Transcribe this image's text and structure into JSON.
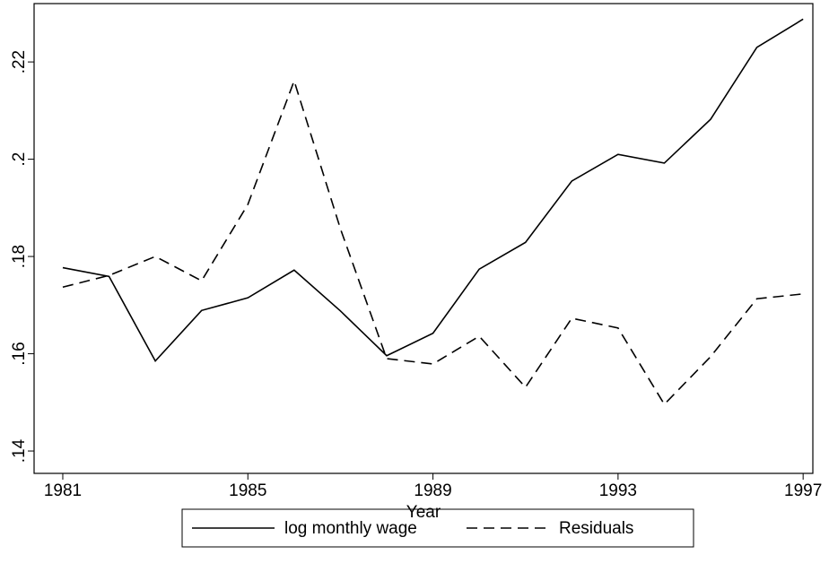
{
  "chart_data": {
    "type": "line",
    "x_label": "Year",
    "x": [
      1981,
      1982,
      1983,
      1984,
      1985,
      1986,
      1987,
      1988,
      1989,
      1990,
      1991,
      1992,
      1993,
      1994,
      1995,
      1996,
      1997
    ],
    "series": [
      {
        "name": "log monthly wage",
        "color": "#000000",
        "line_style": "solid",
        "values": [
          0.1777,
          0.1759,
          0.1585,
          0.1689,
          0.1715,
          0.1772,
          0.1688,
          0.1596,
          0.1642,
          0.1774,
          0.1829,
          0.1955,
          0.201,
          0.1992,
          0.2082,
          0.223,
          0.2288
        ]
      },
      {
        "name": "Residuals",
        "color": "#000000",
        "line_style": "dashed",
        "values": [
          0.1737,
          0.1761,
          0.18,
          0.175,
          0.1907,
          0.2161,
          0.1857,
          0.159,
          0.1579,
          0.1636,
          0.1531,
          0.1673,
          0.1653,
          0.1496,
          0.1594,
          0.1713,
          0.1723
        ]
      }
    ],
    "xlim": [
      1980.38,
      1997.21
    ],
    "xticks": [
      1981,
      1985,
      1989,
      1993,
      1997
    ],
    "ylim": [
      0.1354,
      0.232
    ],
    "yticks": [
      {
        "value": 0.14,
        "label": ".14"
      },
      {
        "value": 0.16,
        "label": ".16"
      },
      {
        "value": 0.18,
        "label": ".18"
      },
      {
        "value": 0.2,
        "label": ".2"
      },
      {
        "value": 0.22,
        "label": ".22"
      }
    ],
    "legend_position": "bottom"
  }
}
